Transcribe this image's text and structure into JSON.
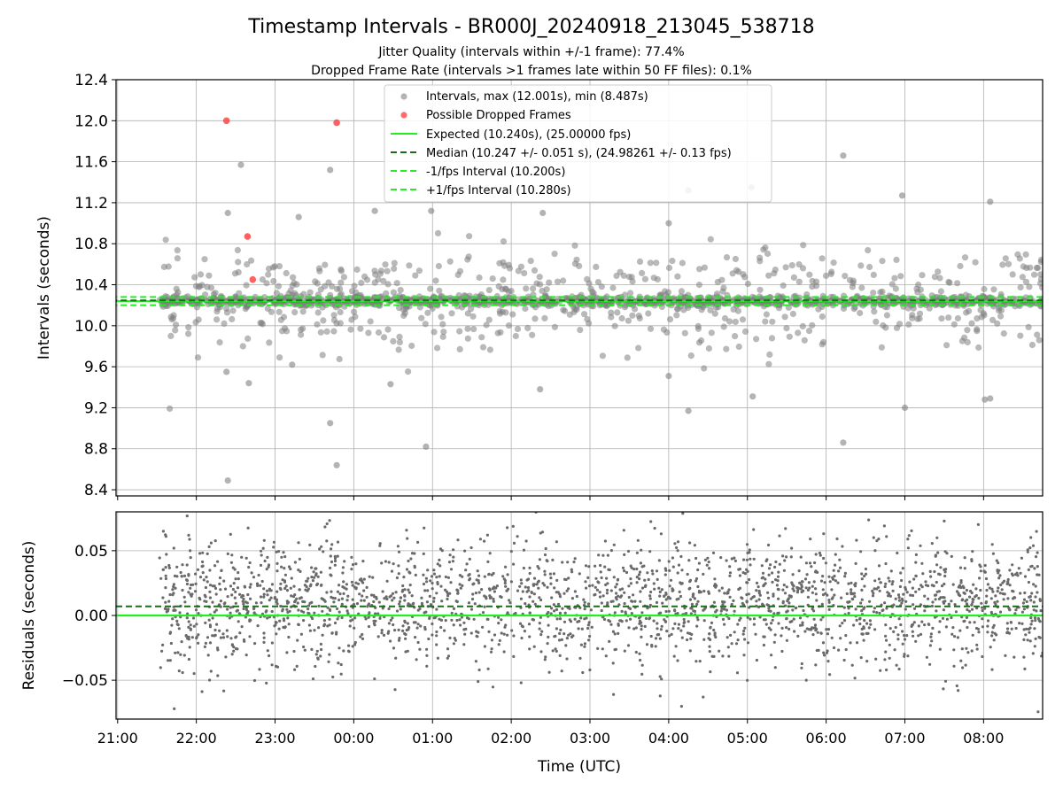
{
  "title": "Timestamp Intervals - BR000J_20240918_213045_538718",
  "subtitle_1": "Jitter Quality (intervals within +/-1 frame): 77.4%",
  "subtitle_2": "Dropped Frame Rate (intervals >1 frames late within 50 FF files): 0.1%",
  "colors": {
    "intervals": "#808080",
    "dropped": "#ff3b3b",
    "expected": "#22ee22",
    "median": "#1a6e1a",
    "fps_interval": "#22ee22",
    "grid": "#b0b0b0"
  },
  "chart_data": [
    {
      "type": "scatter",
      "panel": "intervals",
      "ylabel": "Intervals (seconds)",
      "ylim": [
        8.34,
        12.4
      ],
      "xlim_hours": [
        20.98,
        32.75
      ],
      "yticks": [
        "8.4",
        "8.8",
        "9.2",
        "9.6",
        "10.0",
        "10.4",
        "10.8",
        "11.2",
        "11.6",
        "12.0",
        "12.4"
      ],
      "grid": true,
      "legend_position": "top-center",
      "legend": [
        "Intervals, max (12.001s), min (8.487s)",
        "Possible Dropped Frames",
        "Expected (10.240s), (25.00000 fps)",
        "Median (10.247 +/- 0.051 s), (24.98261 +/- 0.13 fps)",
        "-1/fps Interval (10.200s)",
        "+1/fps Interval (10.280s)"
      ],
      "lines": {
        "expected": 10.24,
        "median": 10.247,
        "minus_fps": 10.2,
        "plus_fps": 10.28
      },
      "dropped_frames": [
        {
          "time": "22:23",
          "value": 12.0
        },
        {
          "time": "23:47",
          "value": 11.98
        },
        {
          "time": "22:39",
          "value": 10.87
        },
        {
          "time": "22:43",
          "value": 10.45
        }
      ],
      "outliers": [
        {
          "time": "22:34",
          "value": 11.57
        },
        {
          "time": "23:42",
          "value": 11.52
        },
        {
          "time": "22:24",
          "value": 11.1
        },
        {
          "time": "23:18",
          "value": 11.06
        },
        {
          "time": "22:23",
          "value": 9.55
        },
        {
          "time": "22:40",
          "value": 9.44
        },
        {
          "time": "23:13",
          "value": 9.62
        },
        {
          "time": "23:42",
          "value": 9.05
        },
        {
          "time": "23:47",
          "value": 8.64
        },
        {
          "time": "22:24",
          "value": 8.49
        },
        {
          "time": "00:55",
          "value": 8.82
        },
        {
          "time": "00:28",
          "value": 9.43
        },
        {
          "time": "02:22",
          "value": 9.38
        },
        {
          "time": "04:15",
          "value": 9.17
        },
        {
          "time": "05:04",
          "value": 9.31
        },
        {
          "time": "05:03",
          "value": 11.35
        },
        {
          "time": "04:15",
          "value": 11.32
        },
        {
          "time": "06:13",
          "value": 11.66
        },
        {
          "time": "06:13",
          "value": 8.86
        },
        {
          "time": "06:58",
          "value": 11.27
        },
        {
          "time": "07:00",
          "value": 9.2
        },
        {
          "time": "08:05",
          "value": 11.21
        },
        {
          "time": "08:01",
          "value": 9.28
        },
        {
          "time": "08:05",
          "value": 9.29
        },
        {
          "time": "04:00",
          "value": 9.51
        },
        {
          "time": "04:00",
          "value": 11.0
        },
        {
          "time": "02:24",
          "value": 11.1
        },
        {
          "time": "00:16",
          "value": 11.12
        },
        {
          "time": "00:59",
          "value": 11.12
        }
      ],
      "bulk_summary": {
        "time_start": "21:32",
        "time_end": "08:45",
        "center": 10.24,
        "points_shown": 1700
      }
    },
    {
      "type": "scatter",
      "panel": "residuals",
      "ylabel": "Residuals (seconds)",
      "xlabel": "Time (UTC)",
      "ylim": [
        -0.08,
        0.08
      ],
      "yticks": [
        "−0.05",
        "0.00",
        "0.05"
      ],
      "xticks": [
        "21:00",
        "22:00",
        "23:00",
        "00:00",
        "01:00",
        "02:00",
        "03:00",
        "04:00",
        "05:00",
        "06:00",
        "07:00",
        "08:00"
      ],
      "grid": true,
      "lines": {
        "expected": 0.0,
        "median": 0.007
      },
      "bulk_summary": {
        "time_start": "21:32",
        "time_end": "08:45",
        "center": 0.01,
        "points_shown": 2400
      }
    }
  ]
}
